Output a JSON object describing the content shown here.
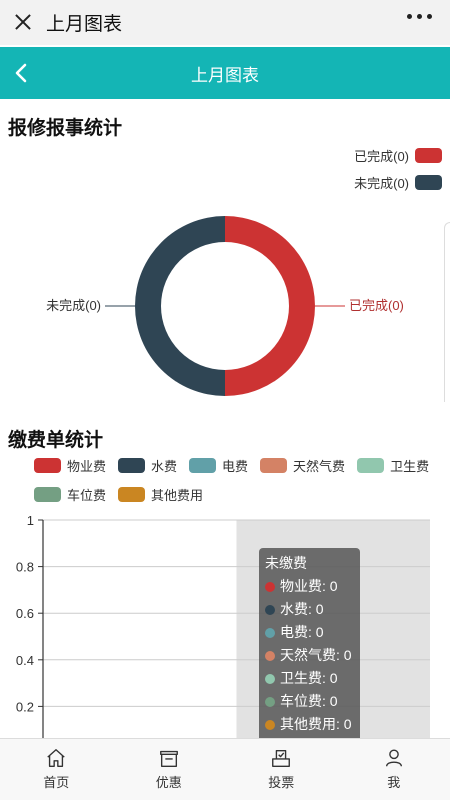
{
  "wechat_bar": {
    "title": "上月图表",
    "close_icon": "close-icon",
    "more_icon": "more-icon"
  },
  "app_bar": {
    "title": "上月图表",
    "back_icon": "chevron-left-icon",
    "background": "#14b5b5"
  },
  "repair_section": {
    "title": "报修报事统计",
    "legend": [
      {
        "label": "已完成(0)",
        "color": "#cc3333"
      },
      {
        "label": "未完成(0)",
        "color": "#2f4554"
      }
    ],
    "callouts": {
      "left": "未完成(0)",
      "right": "已完成(0)"
    }
  },
  "payment_section": {
    "title": "缴费单统计",
    "legend": [
      {
        "label": "物业费",
        "color": "#cc3333"
      },
      {
        "label": "水费",
        "color": "#2f4554"
      },
      {
        "label": "电费",
        "color": "#61a0a8"
      },
      {
        "label": "天然气费",
        "color": "#d48265"
      },
      {
        "label": "卫生费",
        "color": "#91c7ae"
      },
      {
        "label": "车位费",
        "color": "#749f83"
      },
      {
        "label": "其他费用",
        "color": "#ca8622"
      }
    ],
    "tooltip": {
      "title": "未缴费",
      "rows": [
        {
          "label": "物业费: 0",
          "color": "#cc3333"
        },
        {
          "label": "水费: 0",
          "color": "#2f4554"
        },
        {
          "label": "电费: 0",
          "color": "#61a0a8"
        },
        {
          "label": "天然气费: 0",
          "color": "#d48265"
        },
        {
          "label": "卫生费: 0",
          "color": "#91c7ae"
        },
        {
          "label": "车位费: 0",
          "color": "#749f83"
        },
        {
          "label": "其他费用: 0",
          "color": "#ca8622"
        }
      ]
    }
  },
  "chart_data": [
    {
      "type": "pie",
      "title": "报修报事统计",
      "slices": [
        {
          "name": "已完成",
          "value": 0,
          "color": "#cc3333"
        },
        {
          "name": "未完成",
          "value": 0,
          "color": "#2f4554"
        }
      ],
      "donut": true,
      "legend_position": "top-right"
    },
    {
      "type": "bar",
      "title": "缴费单统计",
      "categories": [
        "",
        "未缴费"
      ],
      "series": [
        {
          "name": "物业费",
          "values": [
            0,
            0
          ]
        },
        {
          "name": "水费",
          "values": [
            0,
            0
          ]
        },
        {
          "name": "电费",
          "values": [
            0,
            0
          ]
        },
        {
          "name": "天然气费",
          "values": [
            0,
            0
          ]
        },
        {
          "name": "卫生费",
          "values": [
            0,
            0
          ]
        },
        {
          "name": "车位费",
          "values": [
            0,
            0
          ]
        },
        {
          "name": "其他费用",
          "values": [
            0,
            0
          ]
        }
      ],
      "ylim": [
        0,
        1
      ],
      "yticks": [
        "1",
        "0.8",
        "0.6",
        "0.4",
        "0.2"
      ],
      "grid": true,
      "legend_position": "top-left"
    }
  ],
  "tabbar": [
    {
      "label": "首页",
      "icon": "home-icon"
    },
    {
      "label": "优惠",
      "icon": "coupon-icon"
    },
    {
      "label": "投票",
      "icon": "ballot-icon"
    },
    {
      "label": "我",
      "icon": "user-icon"
    }
  ]
}
